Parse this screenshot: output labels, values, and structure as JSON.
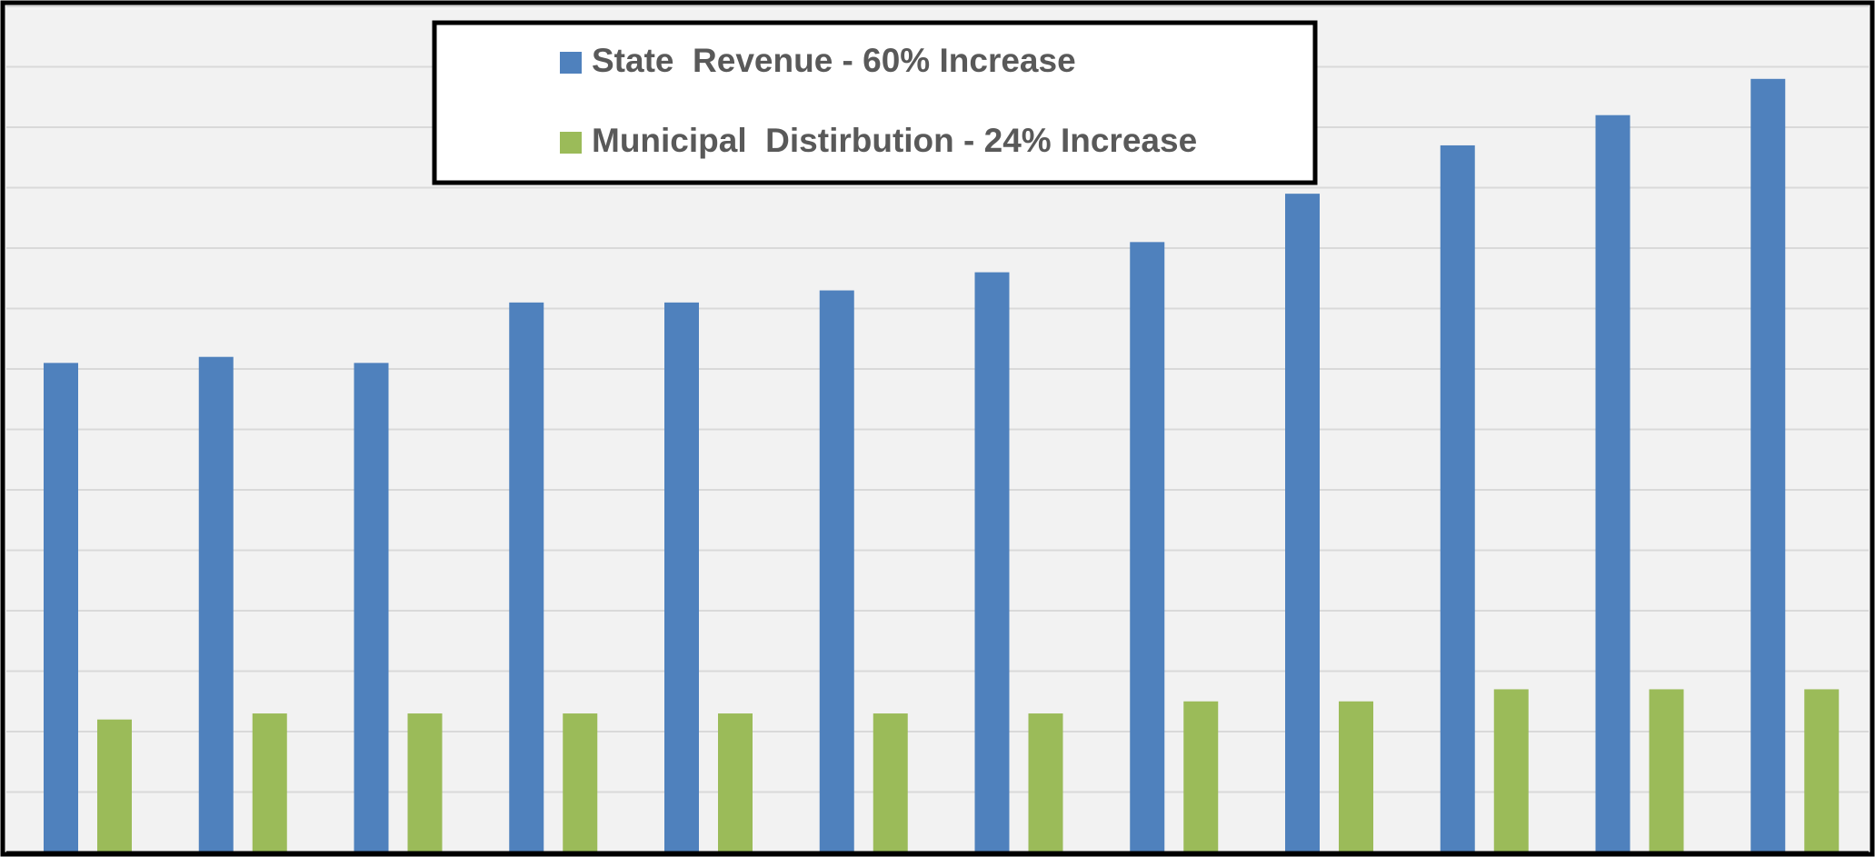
{
  "chart_data": {
    "type": "bar",
    "series": [
      {
        "name": "State  Revenue - 60% Increase",
        "color": "#4f81bd",
        "values": [
          8.1,
          8.2,
          8.1,
          9.1,
          9.1,
          9.3,
          9.6,
          10.1,
          10.9,
          11.7,
          12.2,
          12.8
        ]
      },
      {
        "name": "Municipal  Distirbution - 24% Increase",
        "color": "#9bbb59",
        "values": [
          2.2,
          2.3,
          2.3,
          2.3,
          2.3,
          2.3,
          2.3,
          2.5,
          2.5,
          2.7,
          2.7,
          2.7
        ]
      }
    ],
    "ylim": [
      0,
      14
    ],
    "yticks": [
      0,
      1,
      2,
      3,
      4,
      5,
      6,
      7,
      8,
      9,
      10,
      11,
      12,
      13,
      14
    ],
    "grid": true
  }
}
